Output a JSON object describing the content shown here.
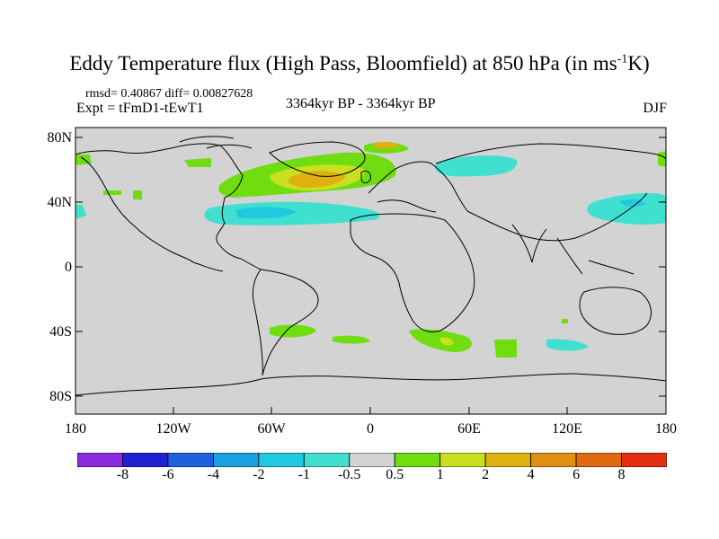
{
  "title": {
    "main": "Eddy Temperature flux (High Pass, Bloomfield) at 850 hPa (in ms",
    "sup": "-1",
    "end": "K)"
  },
  "stats": {
    "rmsd_label": "rmsd= 0.40867  diff= 0.00827628"
  },
  "experiment": "Expt = tFmD1-tEwT1",
  "period": "3364kyr BP - 3364kyr BP",
  "season": "DJF",
  "axes": {
    "lat_ticks": [
      "80N",
      "40N",
      "0",
      "40S",
      "80S"
    ],
    "lon_ticks": [
      "180",
      "120W",
      "60W",
      "0",
      "60E",
      "120E",
      "180"
    ]
  },
  "colorbar": {
    "labels": [
      "-8",
      "-6",
      "-4",
      "-2",
      "-1",
      "-0.5",
      "0.5",
      "1",
      "2",
      "4",
      "6",
      "8"
    ],
    "colors": [
      "#8a2be2",
      "#2020d0",
      "#1e60e0",
      "#1aa0e0",
      "#20c8e0",
      "#40e0d0",
      "#d3d3d3",
      "#70dd10",
      "#c8e020",
      "#e0b010",
      "#e09010",
      "#e06a10",
      "#e03010"
    ]
  },
  "map_colors": {
    "land_ocean": "#d3d3d3",
    "coast": "#000000"
  }
}
